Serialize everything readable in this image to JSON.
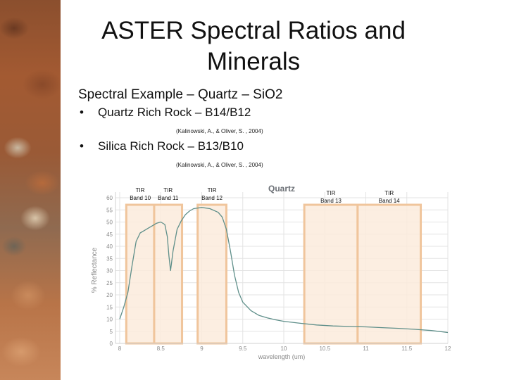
{
  "slide": {
    "title": "ASTER Spectral Ratios and Minerals",
    "title_line1": "ASTER Spectral Ratios and",
    "title_line2": "Minerals",
    "subtitle": "Spectral Example – Quartz – SiO2",
    "bullets": [
      {
        "label": "Quartz Rich Rock – B14/B12",
        "citation": "(Kalinowski, A., & Oliver, S. , 2004)"
      },
      {
        "label": "Silica Rich Rock – B13/B10",
        "citation": "(Kalinowski, A., & Oliver, S. , 2004)"
      }
    ],
    "bullet_glyph": "•"
  },
  "chart_data": {
    "type": "line",
    "title": "Quartz",
    "xlabel": "wavelength (um)",
    "ylabel": "% Reflectance",
    "xlim": [
      8,
      12
    ],
    "ylim": [
      0,
      60
    ],
    "x_ticks": [
      "8",
      "8.5",
      "9",
      "9.5",
      "10",
      "10.5",
      "11",
      "11.5",
      "12"
    ],
    "y_ticks": [
      "0",
      "5",
      "10",
      "15",
      "20",
      "25",
      "30",
      "35",
      "40",
      "45",
      "50",
      "55",
      "60"
    ],
    "grid": true,
    "series": [
      {
        "name": "Quartz",
        "color": "#5f8f8a",
        "x": [
          8.0,
          8.05,
          8.1,
          8.15,
          8.2,
          8.25,
          8.3,
          8.35,
          8.4,
          8.45,
          8.5,
          8.55,
          8.58,
          8.6,
          8.62,
          8.65,
          8.7,
          8.75,
          8.8,
          8.85,
          8.9,
          9.0,
          9.1,
          9.2,
          9.25,
          9.3,
          9.35,
          9.4,
          9.45,
          9.5,
          9.6,
          9.7,
          9.8,
          9.9,
          10.0,
          10.2,
          10.4,
          10.6,
          10.8,
          11.0,
          11.2,
          11.4,
          11.6,
          11.8,
          12.0
        ],
        "y": [
          10,
          15,
          21,
          32,
          42,
          45.5,
          46.5,
          47.5,
          48.5,
          49.5,
          50,
          49,
          44,
          36,
          30,
          38,
          47,
          50.5,
          53,
          54.5,
          55.5,
          56,
          55.5,
          54,
          52,
          47,
          38,
          28,
          21,
          17,
          13.5,
          11.5,
          10.5,
          9.7,
          9.1,
          8.3,
          7.6,
          7.2,
          7.0,
          6.8,
          6.5,
          6.2,
          5.8,
          5.3,
          4.5
        ]
      }
    ],
    "bands": [
      {
        "label_line1": "TIR",
        "label_line2": "Band 10",
        "x_start": 8.08,
        "x_end": 8.42
      },
      {
        "label_line1": "TIR",
        "label_line2": "Band 11",
        "x_start": 8.42,
        "x_end": 8.76
      },
      {
        "label_line1": "TIR",
        "label_line2": "Band 12",
        "x_start": 8.95,
        "x_end": 9.3
      },
      {
        "label_line1": "TIR",
        "label_line2": "Band 13",
        "x_start": 10.25,
        "x_end": 10.9
      },
      {
        "label_line1": "TIR",
        "label_line2": "Band 14",
        "x_start": 10.9,
        "x_end": 11.67
      }
    ],
    "band_fill": "#fcebdc",
    "band_stroke": "#f0c59c"
  }
}
